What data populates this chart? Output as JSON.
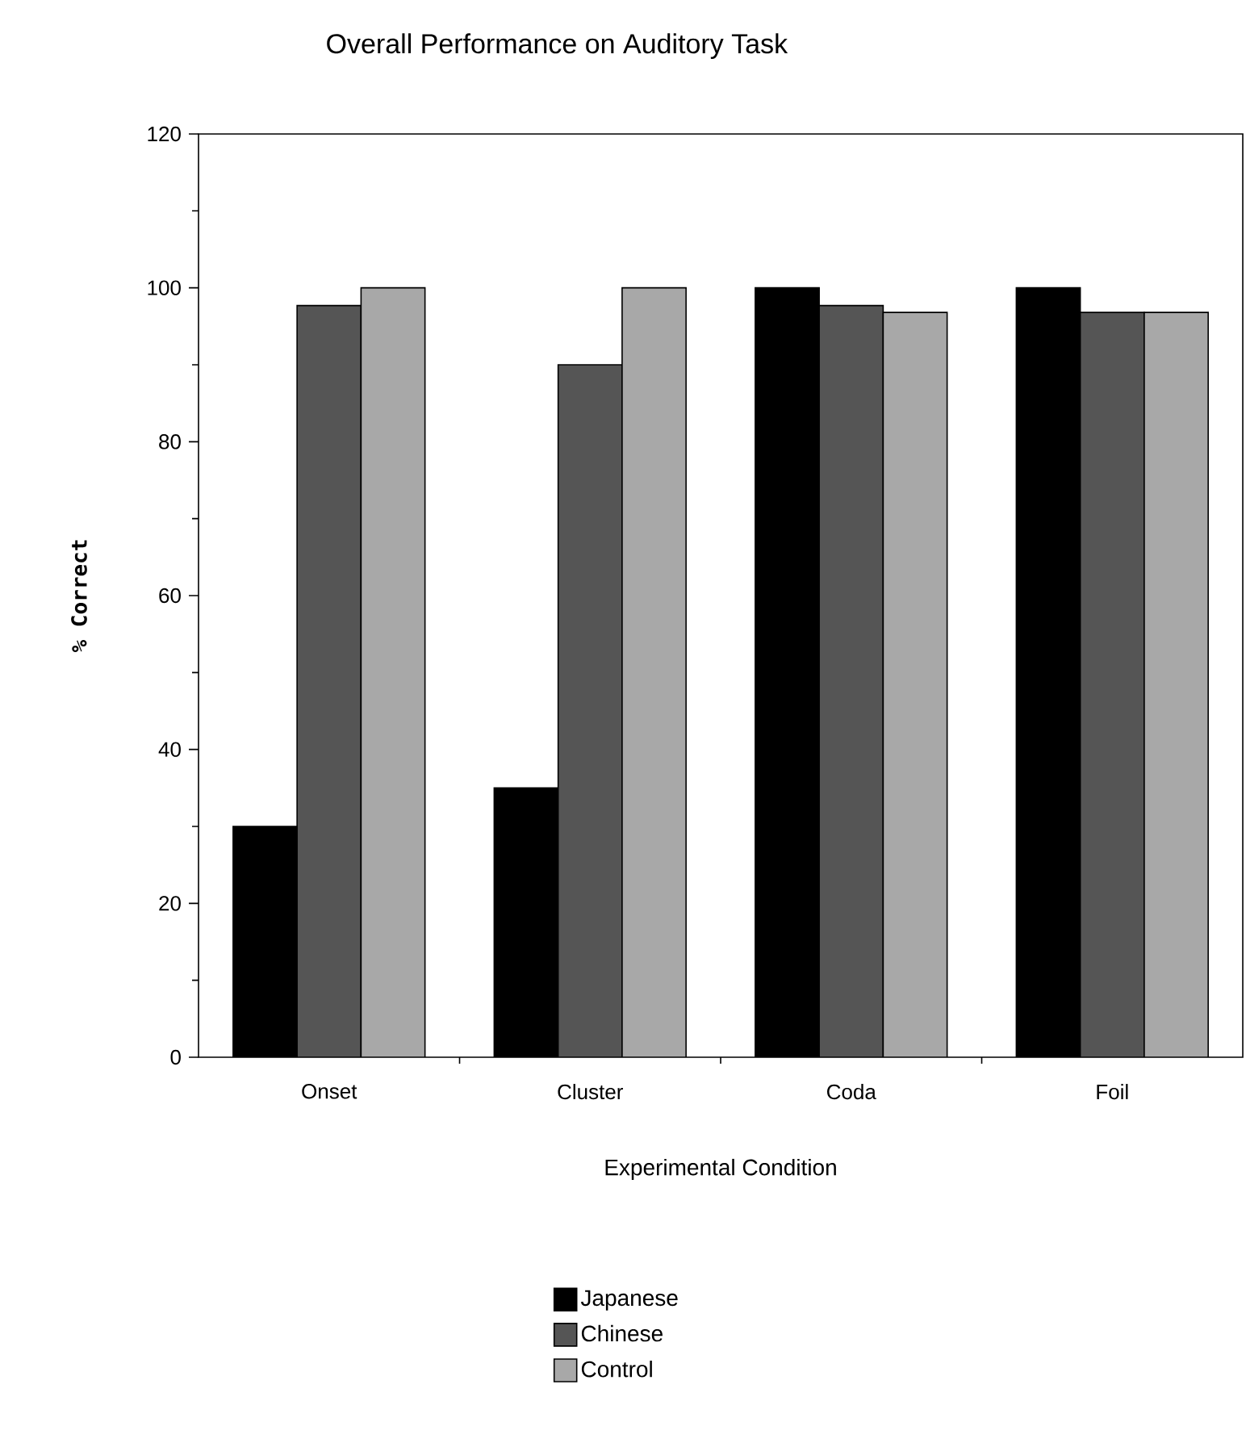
{
  "chart_data": {
    "type": "bar",
    "title": "Overall Performance on Auditory Task",
    "xlabel": "Experimental Condition",
    "ylabel": "% Correct",
    "categories": [
      "Onset",
      "Cluster",
      "Coda",
      "Foil"
    ],
    "series": [
      {
        "name": "Japanese",
        "color": "#000000",
        "values": [
          30,
          35,
          100,
          100
        ]
      },
      {
        "name": "Chinese",
        "color": "#555555",
        "values": [
          97.7,
          90,
          97.7,
          96.8
        ]
      },
      {
        "name": "Control",
        "color": "#a8a8a8",
        "values": [
          100,
          100,
          96.8,
          96.8
        ]
      }
    ],
    "ylim": [
      0,
      120
    ],
    "yticks": [
      0,
      20,
      40,
      60,
      80,
      100,
      120
    ],
    "grid": false,
    "legend": "bottom"
  }
}
